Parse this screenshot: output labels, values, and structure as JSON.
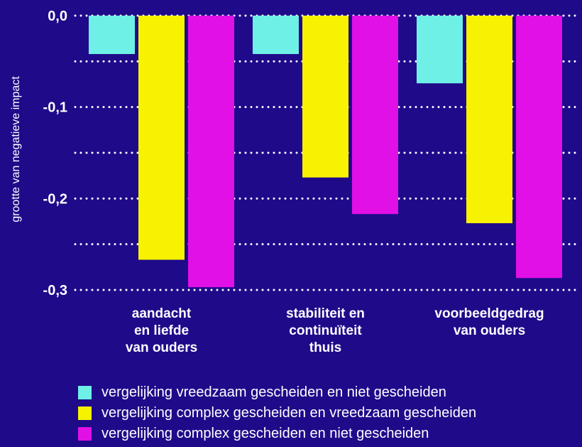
{
  "colors": {
    "background": "#1f0a8a",
    "text": "#ffffff",
    "grid": "#ffffff"
  },
  "chart_data": {
    "type": "bar",
    "ylabel": "grootte van negatieve impact",
    "ylim": [
      -0.3,
      0.0
    ],
    "yticks": [
      {
        "value": 0.0,
        "label": "0,0"
      },
      {
        "value": -0.1,
        "label": "-0,1"
      },
      {
        "value": -0.2,
        "label": "-0,2"
      },
      {
        "value": -0.3,
        "label": "-0,3"
      }
    ],
    "grid": true,
    "grid_style": "dotted",
    "legend_position": "bottom",
    "categories": [
      [
        "aandacht",
        "en liefde",
        "van ouders"
      ],
      [
        "stabiliteit en",
        "continuïteit",
        "thuis"
      ],
      [
        "voorbeeldgedrag",
        "van ouders"
      ]
    ],
    "series": [
      {
        "name": "vergelijking vreedzaam gescheiden en niet gescheiden",
        "color": "#6ef0e6",
        "values": [
          -0.042,
          -0.042,
          -0.074
        ]
      },
      {
        "name": "vergelijking complex gescheiden en vreedzaam gescheiden",
        "color": "#f7f200",
        "values": [
          -0.267,
          -0.177,
          -0.227
        ]
      },
      {
        "name": "vergelijking complex gescheiden en niet gescheiden",
        "color": "#e010e6",
        "values": [
          -0.297,
          -0.217,
          -0.287
        ]
      }
    ]
  }
}
